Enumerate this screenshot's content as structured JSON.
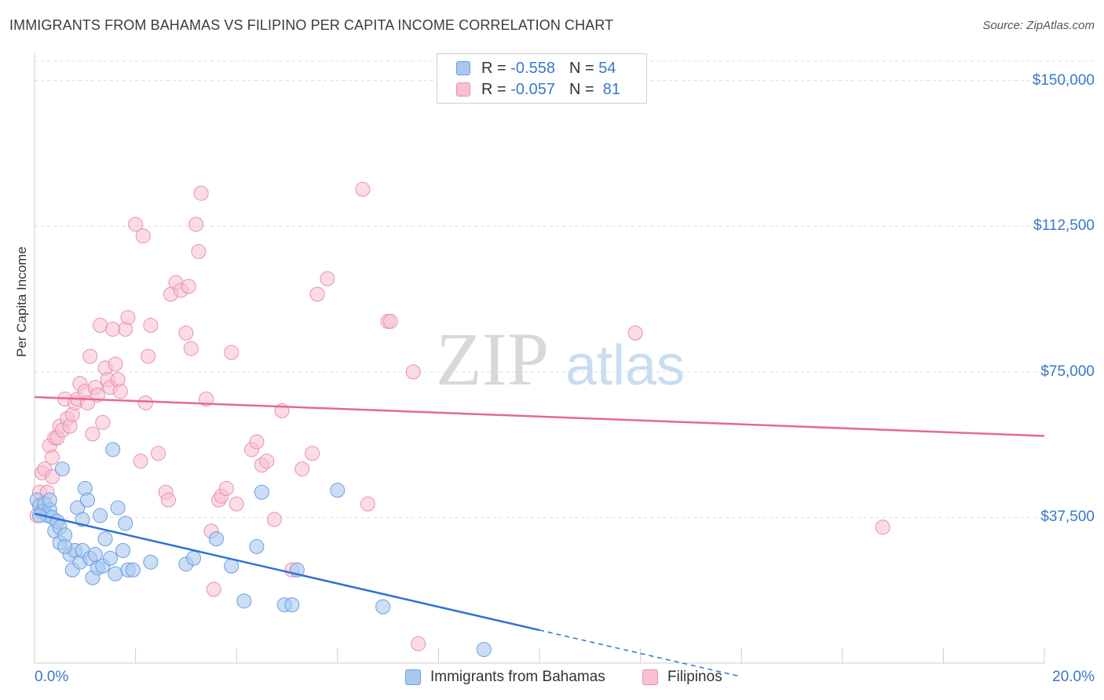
{
  "title": "IMMIGRANTS FROM BAHAMAS VS FILIPINO PER CAPITA INCOME CORRELATION CHART",
  "source": "Source: ZipAtlas.com",
  "watermark": {
    "zip": "ZIP",
    "atlas": "atlas"
  },
  "legend": {
    "r_label": "R =",
    "n_label": "N =",
    "rows": [
      {
        "r": "-0.558",
        "n": "54",
        "color": "#a8c8f0",
        "border": "#6a9fe0"
      },
      {
        "r": "-0.057",
        "n": "81",
        "color": "#f8c0d0",
        "border": "#e890ab"
      }
    ]
  },
  "bottom_legend": [
    {
      "label": "Immigrants from Bahamas",
      "color": "#a8c8f0",
      "border": "#6a9fe0"
    },
    {
      "label": "Filipinos",
      "color": "#f8c0d0",
      "border": "#e890ab"
    }
  ],
  "colors": {
    "blue_point": "#a8c8f0",
    "blue_stroke": "#6a9fe0",
    "blue_line": "#2f72d4",
    "pink_point": "#f8c0d0",
    "pink_stroke": "#e890ab",
    "pink_line": "#e46a93",
    "grid": "#dcdcdc",
    "tick_text": "#3a78c9"
  },
  "chart_data": {
    "type": "scatter",
    "title": "IMMIGRANTS FROM BAHAMAS VS FILIPINO PER CAPITA INCOME CORRELATION CHART",
    "xlabel": "",
    "ylabel": "Per Capita Income",
    "xlim": [
      0,
      20
    ],
    "ylim": [
      0,
      155000
    ],
    "x_tick_labels": [
      "0.0%",
      "20.0%"
    ],
    "y_ticks": [
      37500,
      75000,
      112500,
      150000
    ],
    "y_tick_labels": [
      "$37,500",
      "$75,000",
      "$112,500",
      "$150,000"
    ],
    "grid": true,
    "legend_position": "top-center",
    "series": [
      {
        "name": "Immigrants from Bahamas",
        "trend": {
          "x0": 0.0,
          "y0": 38500,
          "x1": 10.0,
          "y1": 8500,
          "dashed_to_x": 14.0,
          "dashed_to_y": -3500
        },
        "points": [
          [
            0.05,
            42000
          ],
          [
            0.1,
            40500
          ],
          [
            0.15,
            39000
          ],
          [
            0.2,
            41000
          ],
          [
            0.25,
            38000
          ],
          [
            0.3,
            39500
          ],
          [
            0.35,
            37500
          ],
          [
            0.4,
            34000
          ],
          [
            0.45,
            36500
          ],
          [
            0.5,
            35000
          ],
          [
            0.5,
            31000
          ],
          [
            0.55,
            50000
          ],
          [
            0.6,
            33000
          ],
          [
            0.7,
            28000
          ],
          [
            0.75,
            24000
          ],
          [
            0.8,
            29000
          ],
          [
            0.85,
            40000
          ],
          [
            0.9,
            26000
          ],
          [
            0.95,
            37000
          ],
          [
            0.95,
            29000
          ],
          [
            1.0,
            45000
          ],
          [
            1.05,
            42000
          ],
          [
            1.1,
            27000
          ],
          [
            1.15,
            22000
          ],
          [
            1.2,
            28000
          ],
          [
            1.25,
            24500
          ],
          [
            1.3,
            38000
          ],
          [
            1.35,
            25000
          ],
          [
            1.4,
            32000
          ],
          [
            1.5,
            27000
          ],
          [
            1.55,
            55000
          ],
          [
            1.6,
            23000
          ],
          [
            1.65,
            40000
          ],
          [
            1.75,
            29000
          ],
          [
            1.8,
            36000
          ],
          [
            1.85,
            24000
          ],
          [
            1.95,
            24000
          ],
          [
            2.3,
            26000
          ],
          [
            3.0,
            25500
          ],
          [
            3.15,
            27000
          ],
          [
            3.6,
            32000
          ],
          [
            3.9,
            25000
          ],
          [
            4.15,
            16000
          ],
          [
            4.4,
            30000
          ],
          [
            4.5,
            44000
          ],
          [
            4.95,
            15000
          ],
          [
            5.1,
            15000
          ],
          [
            5.2,
            24000
          ],
          [
            6.0,
            44500
          ],
          [
            6.9,
            14500
          ],
          [
            8.9,
            3500
          ],
          [
            0.1,
            38000
          ],
          [
            0.3,
            42000
          ],
          [
            0.6,
            30000
          ]
        ]
      },
      {
        "name": "Filipinos",
        "trend": {
          "x0": 0.0,
          "y0": 68500,
          "x1": 20.0,
          "y1": 58500
        },
        "points": [
          [
            0.05,
            38000
          ],
          [
            0.1,
            44000
          ],
          [
            0.15,
            49000
          ],
          [
            0.2,
            50000
          ],
          [
            0.3,
            56000
          ],
          [
            0.35,
            53000
          ],
          [
            0.4,
            58000
          ],
          [
            0.45,
            58000
          ],
          [
            0.5,
            61000
          ],
          [
            0.55,
            60000
          ],
          [
            0.6,
            68000
          ],
          [
            0.65,
            63000
          ],
          [
            0.7,
            61000
          ],
          [
            0.75,
            64000
          ],
          [
            0.8,
            67000
          ],
          [
            0.85,
            68000
          ],
          [
            0.9,
            72000
          ],
          [
            1.0,
            70000
          ],
          [
            1.05,
            67000
          ],
          [
            1.1,
            79000
          ],
          [
            1.15,
            59000
          ],
          [
            1.2,
            71000
          ],
          [
            1.25,
            69000
          ],
          [
            1.3,
            87000
          ],
          [
            1.35,
            62000
          ],
          [
            1.4,
            76000
          ],
          [
            1.45,
            73000
          ],
          [
            1.5,
            71000
          ],
          [
            1.55,
            86000
          ],
          [
            1.6,
            77000
          ],
          [
            1.65,
            73000
          ],
          [
            1.7,
            70000
          ],
          [
            1.8,
            86000
          ],
          [
            1.85,
            89000
          ],
          [
            2.0,
            113000
          ],
          [
            2.1,
            52000
          ],
          [
            2.15,
            110000
          ],
          [
            2.2,
            67000
          ],
          [
            2.25,
            79000
          ],
          [
            2.3,
            87000
          ],
          [
            2.45,
            54000
          ],
          [
            2.6,
            44000
          ],
          [
            2.65,
            42000
          ],
          [
            2.7,
            95000
          ],
          [
            2.8,
            98000
          ],
          [
            2.9,
            96000
          ],
          [
            3.0,
            85000
          ],
          [
            3.05,
            97000
          ],
          [
            3.1,
            81000
          ],
          [
            3.2,
            113000
          ],
          [
            3.25,
            106000
          ],
          [
            3.3,
            121000
          ],
          [
            3.4,
            68000
          ],
          [
            3.5,
            34000
          ],
          [
            3.55,
            19000
          ],
          [
            3.65,
            42000
          ],
          [
            3.7,
            43000
          ],
          [
            3.8,
            45000
          ],
          [
            3.9,
            80000
          ],
          [
            4.0,
            41000
          ],
          [
            4.3,
            55000
          ],
          [
            4.4,
            57000
          ],
          [
            4.5,
            51000
          ],
          [
            4.6,
            52000
          ],
          [
            4.75,
            37000
          ],
          [
            4.9,
            65000
          ],
          [
            5.1,
            24000
          ],
          [
            5.3,
            50000
          ],
          [
            5.5,
            54000
          ],
          [
            5.6,
            95000
          ],
          [
            5.8,
            99000
          ],
          [
            6.5,
            122000
          ],
          [
            6.6,
            41000
          ],
          [
            7.0,
            88000
          ],
          [
            7.05,
            88000
          ],
          [
            7.5,
            75000
          ],
          [
            7.6,
            5000
          ],
          [
            11.9,
            85000
          ],
          [
            16.8,
            35000
          ],
          [
            0.25,
            44000
          ],
          [
            0.35,
            48000
          ]
        ]
      }
    ]
  }
}
